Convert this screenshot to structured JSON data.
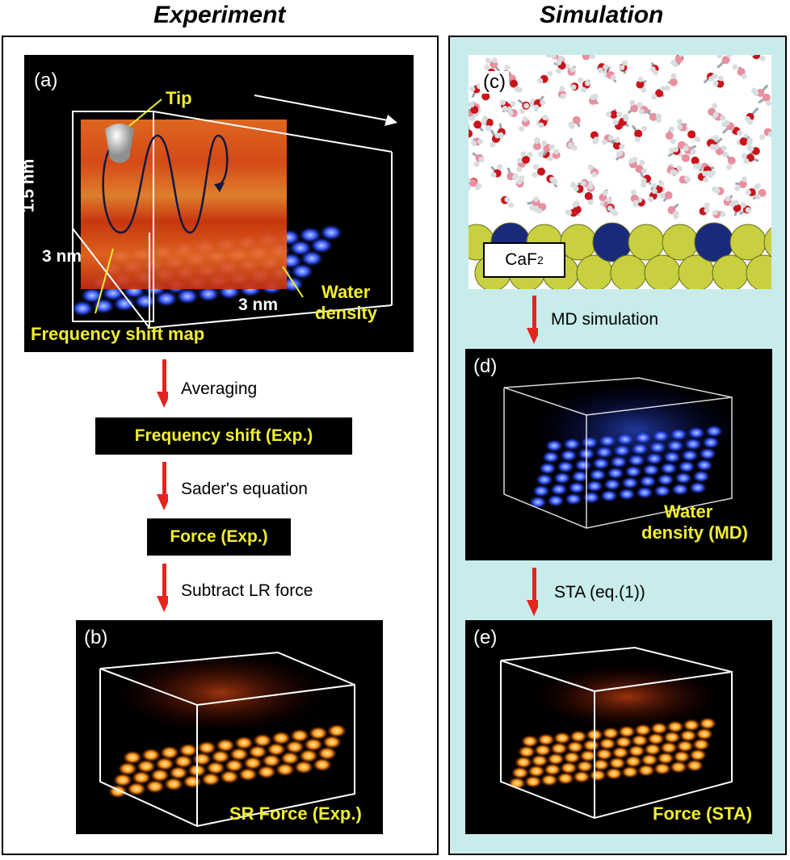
{
  "headings": {
    "left": "Experiment",
    "right": "Simulation"
  },
  "panel_a": {
    "label": "(a)",
    "tip": "Tip",
    "height": "1.5 nm",
    "width1": "3 nm",
    "width2": "3 nm",
    "water1": "Water",
    "water2": "density",
    "freq_map": "Frequency shift map"
  },
  "flow_left": {
    "step1": "Averaging",
    "box1": "Frequency shift (Exp.)",
    "step2": "Sader's equation",
    "box2": "Force (Exp.)",
    "step3": "Subtract LR force"
  },
  "panel_b": {
    "label": "(b)",
    "caption": "SR Force (Exp.)"
  },
  "panel_c": {
    "label": "(c)",
    "substrate": "CaF",
    "substrate_sub": "2"
  },
  "flow_right": {
    "step1": "MD simulation",
    "step2": "STA (eq.(1))"
  },
  "panel_d": {
    "label": "(d)",
    "caption1": "Water",
    "caption2": "density (MD)"
  },
  "panel_e": {
    "label": "(e)",
    "caption": "Force (STA)"
  },
  "colors": {
    "arrow": "#e8231f",
    "caption_yellow": "#f0ee30",
    "sim_bg": "#c8ecec"
  }
}
